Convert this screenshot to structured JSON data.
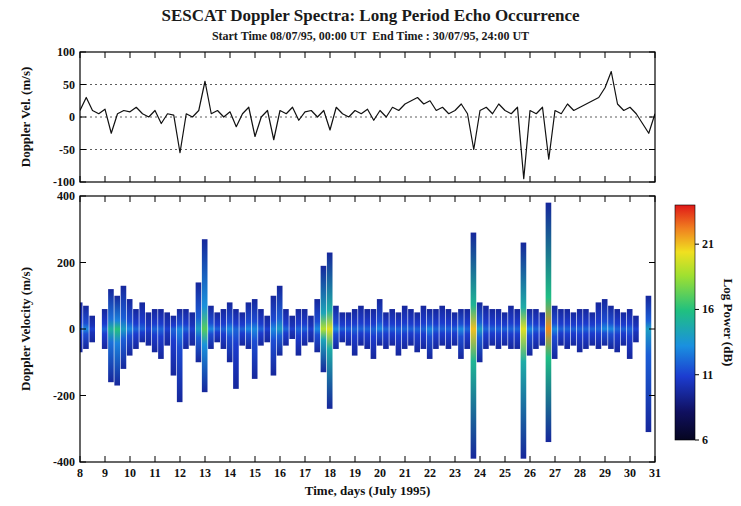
{
  "chart_data": [
    {
      "type": "line",
      "title": "SESCAT Doppler Spectra: Long Period Echo Occurrence",
      "subtitle": "Start Time 08/07/95, 00:00 UT  End Time : 30/07/95, 24:00 UT",
      "ylabel": "Doppler Vel. (m/s)",
      "x": [
        8,
        8.25,
        8.5,
        8.75,
        9,
        9.25,
        9.5,
        9.75,
        10,
        10.25,
        10.5,
        10.75,
        11,
        11.25,
        11.5,
        11.75,
        12,
        12.25,
        12.5,
        12.75,
        13,
        13.25,
        13.5,
        13.75,
        14,
        14.25,
        14.5,
        14.75,
        15,
        15.25,
        15.5,
        15.75,
        16,
        16.25,
        16.5,
        16.75,
        17,
        17.25,
        17.5,
        17.75,
        18,
        18.25,
        18.5,
        18.75,
        19,
        19.25,
        19.5,
        19.75,
        20,
        20.25,
        20.5,
        20.75,
        21,
        21.25,
        21.5,
        21.75,
        22,
        22.25,
        22.5,
        22.75,
        23,
        23.25,
        23.5,
        23.75,
        24,
        24.25,
        24.5,
        24.75,
        25,
        25.25,
        25.5,
        25.75,
        26,
        26.25,
        26.5,
        26.75,
        27,
        27.25,
        27.5,
        27.75,
        28,
        28.25,
        28.5,
        28.75,
        29,
        29.25,
        29.5,
        29.75,
        30,
        30.25,
        30.5,
        30.75,
        31
      ],
      "values": [
        10,
        30,
        10,
        5,
        12,
        -25,
        5,
        10,
        8,
        15,
        5,
        0,
        10,
        -10,
        5,
        3,
        -55,
        5,
        0,
        10,
        55,
        5,
        10,
        0,
        8,
        -15,
        5,
        15,
        -30,
        0,
        10,
        -35,
        10,
        5,
        15,
        -5,
        8,
        10,
        0,
        10,
        -20,
        15,
        5,
        0,
        10,
        5,
        12,
        -5,
        10,
        0,
        15,
        10,
        20,
        25,
        30,
        20,
        25,
        10,
        15,
        5,
        10,
        20,
        5,
        -50,
        10,
        15,
        5,
        20,
        10,
        5,
        15,
        -95,
        10,
        5,
        15,
        -65,
        10,
        5,
        20,
        10,
        15,
        20,
        25,
        30,
        45,
        70,
        20,
        10,
        15,
        5,
        -10,
        -25,
        5
      ],
      "color": "#111111",
      "xlim": [
        8,
        31
      ],
      "xticks": [
        8,
        9,
        10,
        11,
        12,
        13,
        14,
        15,
        16,
        17,
        18,
        19,
        20,
        21,
        22,
        23,
        24,
        25,
        26,
        27,
        28,
        29,
        30,
        31
      ],
      "ylim": [
        -100,
        100
      ],
      "yticks": [
        -100,
        -50,
        0,
        50,
        100
      ],
      "grid": true,
      "tick_labels": "y"
    },
    {
      "type": "spectrogram",
      "xlabel": "Time, days (July 1995)",
      "ylabel": "Doppler Velocity (m/s)",
      "x": [
        8,
        8.25,
        8.5,
        8.75,
        9,
        9.25,
        9.5,
        9.75,
        10,
        10.25,
        10.5,
        10.75,
        11,
        11.25,
        11.5,
        11.75,
        12,
        12.25,
        12.5,
        12.75,
        13,
        13.25,
        13.5,
        13.75,
        14,
        14.25,
        14.5,
        14.75,
        15,
        15.25,
        15.5,
        15.75,
        16,
        16.25,
        16.5,
        16.75,
        17,
        17.25,
        17.5,
        17.75,
        18,
        18.25,
        18.5,
        18.75,
        19,
        19.25,
        19.5,
        19.75,
        20,
        20.25,
        20.5,
        20.75,
        21,
        21.25,
        21.5,
        21.75,
        22,
        22.25,
        22.5,
        22.75,
        23,
        23.25,
        23.5,
        23.75,
        24,
        24.25,
        24.5,
        24.75,
        25,
        25.25,
        25.5,
        25.75,
        26,
        26.25,
        26.5,
        26.75,
        27,
        27.25,
        27.5,
        27.75,
        28,
        28.25,
        28.5,
        28.75,
        29,
        29.25,
        29.5,
        29.75,
        30,
        30.25,
        30.5,
        30.75,
        31
      ],
      "low": [
        -70,
        -60,
        -40,
        null,
        -60,
        -160,
        -170,
        -120,
        -80,
        -60,
        -40,
        -50,
        -70,
        -90,
        -50,
        -140,
        -220,
        -60,
        -50,
        -100,
        -190,
        -60,
        -40,
        -60,
        -100,
        -180,
        -50,
        -60,
        -150,
        -50,
        -40,
        -140,
        -80,
        -50,
        -30,
        -80,
        -50,
        -40,
        -70,
        -130,
        -240,
        -60,
        -40,
        -50,
        -80,
        -50,
        -60,
        -90,
        -50,
        -60,
        -50,
        -80,
        -60,
        -50,
        -70,
        -60,
        -90,
        -60,
        -50,
        -60,
        -50,
        -90,
        -60,
        -390,
        -100,
        -60,
        -50,
        -60,
        -50,
        -60,
        -60,
        -390,
        -80,
        -60,
        -50,
        -340,
        -90,
        -50,
        -60,
        -50,
        -70,
        -60,
        -50,
        -60,
        -50,
        -60,
        -70,
        -50,
        -90,
        -40,
        null,
        -310,
        null
      ],
      "high": [
        80,
        70,
        40,
        null,
        60,
        120,
        100,
        130,
        90,
        60,
        80,
        50,
        60,
        60,
        50,
        40,
        60,
        60,
        50,
        140,
        270,
        70,
        50,
        60,
        80,
        60,
        50,
        80,
        90,
        60,
        40,
        100,
        130,
        60,
        40,
        60,
        60,
        40,
        90,
        190,
        230,
        70,
        50,
        50,
        60,
        70,
        60,
        60,
        90,
        50,
        60,
        50,
        70,
        60,
        50,
        70,
        60,
        60,
        70,
        60,
        50,
        60,
        60,
        290,
        80,
        70,
        60,
        60,
        50,
        70,
        60,
        260,
        60,
        60,
        50,
        380,
        70,
        60,
        60,
        50,
        60,
        60,
        50,
        80,
        90,
        70,
        60,
        50,
        60,
        40,
        null,
        100,
        null
      ],
      "power": [
        12,
        13,
        11,
        null,
        12,
        15,
        16,
        14,
        13,
        12,
        12,
        11,
        12,
        12,
        11,
        12,
        13,
        12,
        11,
        14,
        17,
        13,
        12,
        12,
        13,
        12,
        12,
        13,
        13,
        12,
        11,
        13,
        14,
        12,
        11,
        12,
        12,
        11,
        13,
        19,
        20,
        13,
        12,
        12,
        12,
        12,
        12,
        12,
        13,
        12,
        12,
        12,
        12,
        12,
        12,
        12,
        13,
        12,
        12,
        12,
        12,
        13,
        12,
        21,
        14,
        12,
        12,
        12,
        12,
        12,
        12,
        20,
        13,
        12,
        12,
        22,
        13,
        12,
        12,
        12,
        12,
        12,
        12,
        12,
        13,
        13,
        12,
        12,
        12,
        11,
        null,
        14,
        null
      ],
      "xlim": [
        8,
        31
      ],
      "xticks": [
        8,
        9,
        10,
        11,
        12,
        13,
        14,
        15,
        16,
        17,
        18,
        19,
        20,
        21,
        22,
        23,
        24,
        25,
        26,
        27,
        28,
        29,
        30,
        31
      ],
      "ylim": [
        -400,
        400
      ],
      "yticks": [
        -400,
        -200,
        0,
        200,
        400
      ],
      "grid": false,
      "colorbar": {
        "label": "Log Power (dB)",
        "range": [
          6,
          24
        ],
        "ticks": [
          6,
          11,
          16,
          21
        ]
      }
    }
  ]
}
